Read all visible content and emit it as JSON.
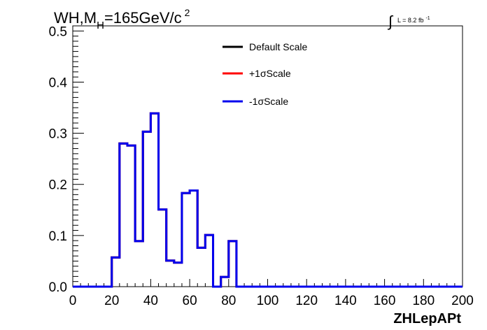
{
  "chart_data": {
    "type": "line",
    "title": {
      "main": "WH,M",
      "subscript": "H",
      "rest": "=165GeV/c",
      "superscript": "2"
    },
    "luminosity": {
      "integral_symbol": "∫",
      "text": "L = 8.2 fb",
      "superscript": "-1"
    },
    "xlabel": "ZHLepAPt",
    "ylabel": "",
    "xlim": [
      0,
      200
    ],
    "ylim": [
      0,
      0.51
    ],
    "x_ticks": [
      "0",
      "20",
      "40",
      "60",
      "80",
      "100",
      "120",
      "140",
      "160",
      "180",
      "200"
    ],
    "y_ticks": [
      "0.0",
      "0.1",
      "0.2",
      "0.3",
      "0.4",
      "0.5"
    ],
    "grid": false,
    "legend_position": "top-center",
    "bin_edges": [
      0,
      4,
      8,
      12,
      16,
      20,
      24,
      28,
      32,
      36,
      40,
      44,
      48,
      52,
      56,
      60,
      64,
      68,
      72,
      76,
      80,
      84,
      88,
      92,
      96,
      100,
      104,
      108,
      112,
      116,
      120,
      124,
      128,
      132,
      136,
      140,
      144,
      148,
      152,
      156,
      160,
      164,
      168,
      172,
      176,
      180,
      184,
      188,
      192,
      196,
      200
    ],
    "series": [
      {
        "name": "Default Scale",
        "color": "#000000",
        "values": [
          0,
          0,
          0,
          0,
          0,
          0.057,
          0.28,
          0.276,
          0.089,
          0.303,
          0.339,
          0.151,
          0.051,
          0.047,
          0.183,
          0.188,
          0.076,
          0.101,
          0,
          0.019,
          0.089,
          0,
          0,
          0,
          0,
          0,
          0,
          0,
          0,
          0,
          0,
          0,
          0,
          0,
          0,
          0,
          0,
          0,
          0,
          0,
          0,
          0,
          0,
          0,
          0,
          0,
          0,
          0,
          0,
          0
        ]
      },
      {
        "name": "+1σScale",
        "color": "#ff0000",
        "values": [
          0,
          0,
          0,
          0,
          0,
          0.057,
          0.28,
          0.276,
          0.089,
          0.303,
          0.339,
          0.151,
          0.051,
          0.047,
          0.183,
          0.188,
          0.076,
          0.101,
          0,
          0.019,
          0.089,
          0,
          0,
          0,
          0,
          0,
          0,
          0,
          0,
          0,
          0,
          0,
          0,
          0,
          0,
          0,
          0,
          0,
          0,
          0,
          0,
          0,
          0,
          0,
          0,
          0,
          0,
          0,
          0,
          0
        ]
      },
      {
        "name": "-1σScale",
        "color": "#0000ee",
        "values": [
          0,
          0,
          0,
          0,
          0,
          0.057,
          0.28,
          0.276,
          0.089,
          0.303,
          0.339,
          0.151,
          0.051,
          0.047,
          0.183,
          0.188,
          0.076,
          0.101,
          0,
          0.019,
          0.089,
          0,
          0,
          0,
          0,
          0,
          0,
          0,
          0,
          0,
          0,
          0,
          0,
          0,
          0,
          0,
          0,
          0,
          0,
          0,
          0,
          0,
          0,
          0,
          0,
          0,
          0,
          0,
          0,
          0
        ]
      }
    ]
  }
}
